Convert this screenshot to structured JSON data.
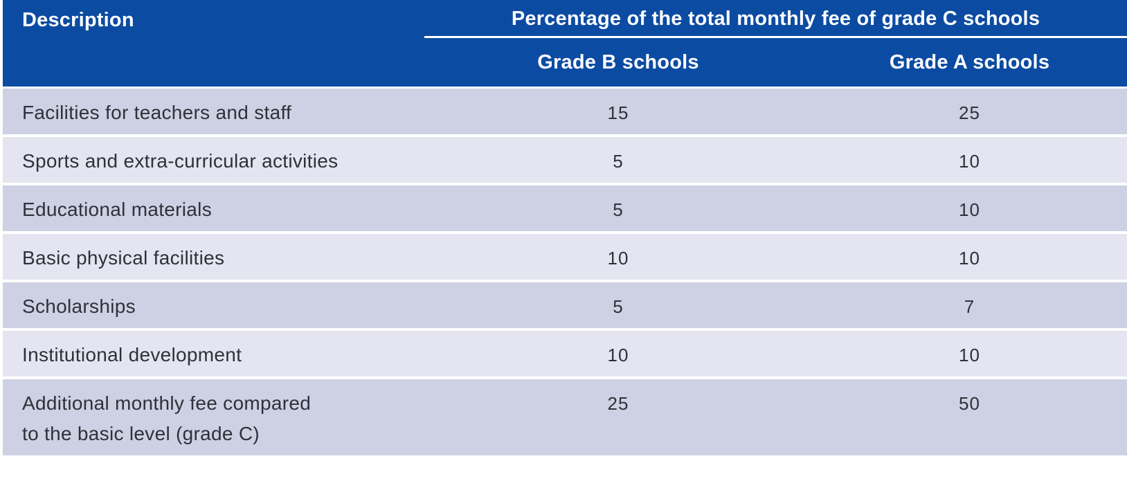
{
  "table": {
    "header": {
      "description_label": "Description",
      "group_label": "Percentage of the total monthly fee of grade C schools",
      "grade_b_label": "Grade B schools",
      "grade_a_label": "Grade A schools"
    },
    "rows": [
      {
        "description": "Facilities for teachers and staff",
        "grade_b": "15",
        "grade_a": "25",
        "tall": false
      },
      {
        "description": "Sports and extra-curricular activities",
        "grade_b": "5",
        "grade_a": "10",
        "tall": false
      },
      {
        "description": "Educational materials",
        "grade_b": "5",
        "grade_a": "10",
        "tall": false
      },
      {
        "description": "Basic physical facilities",
        "grade_b": "10",
        "grade_a": "10",
        "tall": false
      },
      {
        "description": "Scholarships",
        "grade_b": "5",
        "grade_a": "7",
        "tall": false
      },
      {
        "description": "Institutional development",
        "grade_b": "10",
        "grade_a": "10",
        "tall": false
      },
      {
        "description": "Additional monthly fee compared\nto the basic level (grade C)",
        "grade_b": "25",
        "grade_a": "50",
        "tall": true
      }
    ],
    "colors": {
      "header_bg": "#0c4ba2",
      "header_text": "#ffffff",
      "row_odd_bg": "#cdd1e3",
      "row_even_bg": "#e4e5f0",
      "body_text": "#30303a",
      "page_bg": "#ffffff"
    }
  },
  "chart_data": {
    "type": "table",
    "title": "Percentage of the total monthly fee of grade C schools",
    "columns": [
      "Description",
      "Grade B schools",
      "Grade A schools"
    ],
    "rows": [
      [
        "Facilities for teachers and staff",
        15,
        25
      ],
      [
        "Sports and extra-curricular activities",
        5,
        10
      ],
      [
        "Educational materials",
        5,
        10
      ],
      [
        "Basic physical facilities",
        10,
        10
      ],
      [
        "Scholarships",
        5,
        7
      ],
      [
        "Institutional development",
        10,
        10
      ],
      [
        "Additional monthly fee compared to the basic level (grade C)",
        25,
        50
      ]
    ]
  }
}
